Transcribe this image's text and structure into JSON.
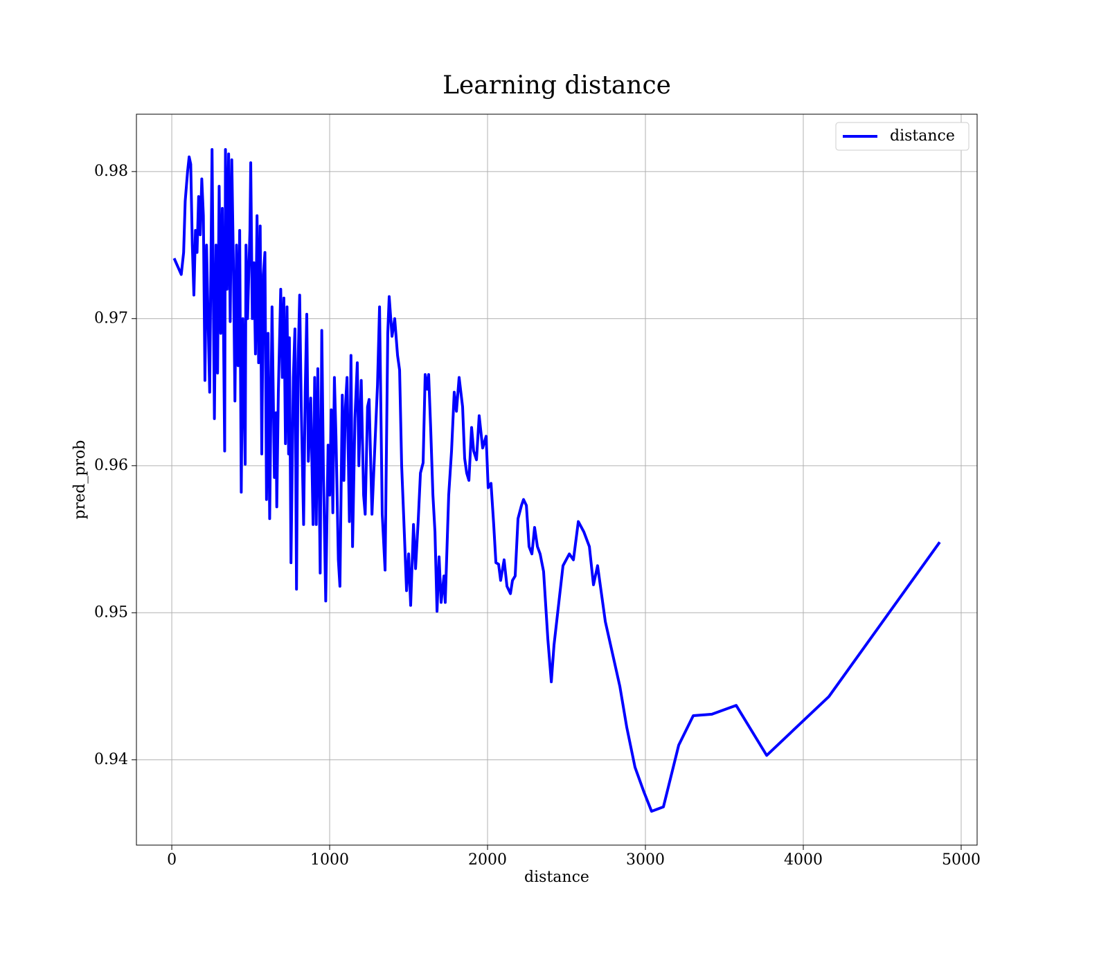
{
  "chart_data": {
    "type": "line",
    "title": "Learning distance",
    "xlabel": "distance",
    "ylabel": "pred_prob",
    "x": [
      15,
      60,
      75,
      85,
      100,
      110,
      120,
      130,
      140,
      150,
      160,
      170,
      180,
      190,
      200,
      210,
      220,
      230,
      240,
      255,
      270,
      280,
      290,
      300,
      310,
      320,
      335,
      340,
      350,
      360,
      370,
      380,
      390,
      400,
      410,
      420,
      430,
      440,
      450,
      465,
      470,
      480,
      495,
      500,
      510,
      520,
      530,
      540,
      550,
      560,
      570,
      580,
      590,
      600,
      610,
      620,
      635,
      650,
      660,
      665,
      675,
      690,
      700,
      710,
      720,
      730,
      740,
      745,
      755,
      770,
      780,
      790,
      800,
      810,
      820,
      835,
      845,
      855,
      865,
      880,
      895,
      905,
      915,
      925,
      940,
      950,
      960,
      975,
      990,
      1000,
      1010,
      1020,
      1030,
      1040,
      1055,
      1065,
      1080,
      1090,
      1100,
      1110,
      1125,
      1135,
      1145,
      1160,
      1175,
      1185,
      1200,
      1215,
      1225,
      1240,
      1250,
      1268,
      1303,
      1316,
      1333,
      1351,
      1368,
      1377,
      1395,
      1412,
      1430,
      1443,
      1456,
      1469,
      1487,
      1500,
      1513,
      1531,
      1544,
      1561,
      1575,
      1592,
      1605,
      1618,
      1627,
      1640,
      1654,
      1667,
      1680,
      1693,
      1706,
      1724,
      1732,
      1754,
      1772,
      1789,
      1803,
      1820,
      1842,
      1855,
      1868,
      1882,
      1899,
      1912,
      1930,
      1947,
      1969,
      1991,
      2004,
      2022,
      2039,
      2053,
      2070,
      2083,
      2105,
      2123,
      2145,
      2158,
      2175,
      2193,
      2215,
      2228,
      2246,
      2263,
      2281,
      2298,
      2316,
      2333,
      2355,
      2382,
      2404,
      2421,
      2478,
      2518,
      2544,
      2575,
      2610,
      2645,
      2671,
      2697,
      2746,
      2838,
      2882,
      2934,
      2991,
      3039,
      3114,
      3211,
      3303,
      3421,
      3575,
      3768,
      4162,
      4864
    ],
    "series": [
      {
        "name": "distance",
        "color": "#0000ff",
        "values": [
          0.9741,
          0.973,
          0.9745,
          0.978,
          0.98,
          0.981,
          0.9805,
          0.975,
          0.9716,
          0.976,
          0.9745,
          0.9783,
          0.9757,
          0.9795,
          0.977,
          0.9658,
          0.975,
          0.97,
          0.965,
          0.9815,
          0.9632,
          0.975,
          0.9663,
          0.979,
          0.969,
          0.9775,
          0.961,
          0.9815,
          0.972,
          0.9812,
          0.9698,
          0.9808,
          0.974,
          0.9644,
          0.975,
          0.9668,
          0.976,
          0.9582,
          0.97,
          0.9601,
          0.975,
          0.97,
          0.976,
          0.9806,
          0.97,
          0.9738,
          0.9676,
          0.977,
          0.967,
          0.9763,
          0.9608,
          0.973,
          0.9745,
          0.9577,
          0.969,
          0.9564,
          0.9708,
          0.9592,
          0.9636,
          0.9572,
          0.965,
          0.972,
          0.966,
          0.9714,
          0.9615,
          0.9708,
          0.9608,
          0.9687,
          0.9534,
          0.966,
          0.9693,
          0.9516,
          0.967,
          0.9716,
          0.964,
          0.956,
          0.965,
          0.9703,
          0.9603,
          0.9646,
          0.956,
          0.966,
          0.956,
          0.9666,
          0.9527,
          0.9692,
          0.96,
          0.9508,
          0.9614,
          0.958,
          0.9638,
          0.9568,
          0.966,
          0.962,
          0.9536,
          0.9518,
          0.9648,
          0.959,
          0.964,
          0.966,
          0.9562,
          0.9675,
          0.9545,
          0.9632,
          0.967,
          0.96,
          0.9658,
          0.958,
          0.9567,
          0.964,
          0.9645,
          0.9567,
          0.9655,
          0.9708,
          0.9567,
          0.9529,
          0.969,
          0.9715,
          0.9688,
          0.97,
          0.9675,
          0.9665,
          0.96,
          0.9565,
          0.9515,
          0.954,
          0.9505,
          0.956,
          0.953,
          0.9563,
          0.9595,
          0.9602,
          0.9662,
          0.9652,
          0.9662,
          0.9625,
          0.958,
          0.9555,
          0.9501,
          0.9538,
          0.9507,
          0.9525,
          0.9507,
          0.958,
          0.961,
          0.965,
          0.9637,
          0.966,
          0.964,
          0.9605,
          0.9595,
          0.959,
          0.9626,
          0.961,
          0.9604,
          0.9634,
          0.9612,
          0.962,
          0.9585,
          0.9588,
          0.956,
          0.9534,
          0.9533,
          0.9522,
          0.9536,
          0.9518,
          0.9513,
          0.9522,
          0.9525,
          0.9564,
          0.9573,
          0.9577,
          0.9573,
          0.9545,
          0.954,
          0.9558,
          0.9545,
          0.954,
          0.9528,
          0.9482,
          0.9453,
          0.9478,
          0.9532,
          0.954,
          0.9536,
          0.9562,
          0.9555,
          0.9545,
          0.9519,
          0.9532,
          0.9494,
          0.945,
          0.9422,
          0.9395,
          0.9378,
          0.9365,
          0.9368,
          0.941,
          0.943,
          0.9431,
          0.9437,
          0.9403,
          0.9443,
          0.9548
        ]
      }
    ],
    "xlim": [
      -224,
      5101
    ],
    "xticks": [
      0,
      1000,
      2000,
      3000,
      4000,
      5000
    ],
    "ylim": [
      0.9342,
      0.9839
    ],
    "yticks": [
      0.94,
      0.95,
      0.96,
      0.97,
      0.98
    ],
    "grid": true,
    "legend": "upper right"
  }
}
